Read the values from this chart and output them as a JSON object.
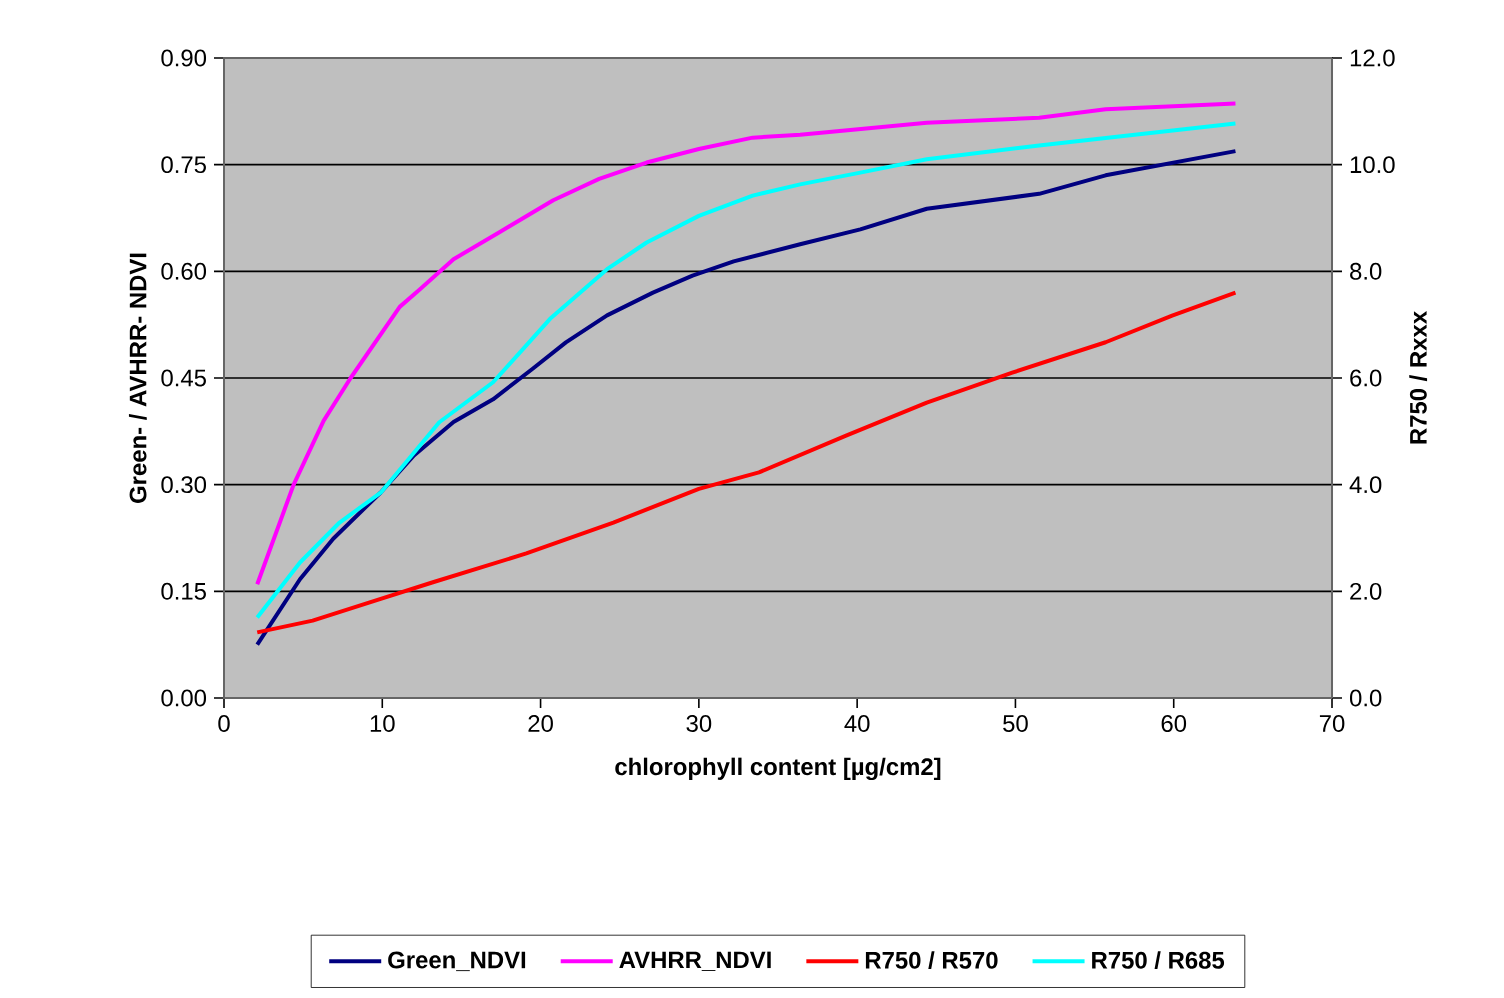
{
  "chart_data": {
    "type": "line",
    "xlabel": "chlorophyll content [µg/cm2]",
    "ylabel": "Green- / AVHRR- NDVI",
    "y2label": "R750 / Rxxx",
    "xlim": [
      0,
      70
    ],
    "xticks": [
      0,
      10,
      20,
      30,
      40,
      50,
      60,
      70
    ],
    "ylim": [
      0,
      0.9
    ],
    "yticks": [
      {
        "value": 0,
        "label": "0.00"
      },
      0.15,
      {
        "value": 0.3,
        "label": "0.30"
      },
      0.45,
      {
        "value": 0.6,
        "label": "0.60"
      },
      0.75,
      {
        "value": 0.9,
        "label": "0.90"
      }
    ],
    "y2lim": [
      0,
      12
    ],
    "y2ticks": [
      {
        "value": 0,
        "label": "0.0"
      },
      {
        "value": 2,
        "label": "2.0"
      },
      {
        "value": 4,
        "label": "4.0"
      },
      {
        "value": 6,
        "label": "6.0"
      },
      {
        "value": 8,
        "label": "8.0"
      },
      {
        "value": 10,
        "label": "10.0"
      },
      {
        "value": 12,
        "label": "12.0"
      }
    ],
    "grid": "y",
    "legend": "bottom",
    "marker": "none",
    "line_style": "solid",
    "series": [
      {
        "name": "Green_NDVI",
        "color": "#000080",
        "x": [
          2.1,
          4.8,
          6.9,
          9.9,
          12.0,
          14.5,
          17.0,
          19.5,
          21.6,
          24.2,
          27.1,
          29.6,
          32.2,
          36.4,
          40.2,
          44.4,
          51.5,
          55.7,
          63.9
        ],
        "values": [
          0.075,
          0.167,
          0.224,
          0.289,
          0.341,
          0.388,
          0.42,
          0.463,
          0.5,
          0.538,
          0.57,
          0.594,
          0.614,
          0.638,
          0.659,
          0.688,
          0.709,
          0.735,
          0.769
        ]
      },
      {
        "name": "AVHRR_NDVI",
        "color": "#ff00ff",
        "x": [
          2.1,
          4.4,
          6.3,
          8.0,
          11.1,
          12.4,
          14.5,
          17.4,
          20.8,
          23.7,
          26.7,
          30.0,
          33.4,
          36.4,
          44.4,
          51.5,
          55.7,
          63.9
        ],
        "values": [
          0.16,
          0.3,
          0.39,
          0.45,
          0.55,
          0.575,
          0.617,
          0.655,
          0.7,
          0.73,
          0.753,
          0.772,
          0.788,
          0.792,
          0.809,
          0.816,
          0.828,
          0.836
        ]
      },
      {
        "name": "R750 / R570",
        "color": "#ff0000",
        "axis": "y2",
        "x": [
          2.1,
          5.6,
          9.9,
          13.2,
          19.1,
          24.6,
          30.0,
          33.8,
          39.3,
          44.4,
          49.8,
          55.7,
          59.9,
          63.9
        ],
        "values": [
          1.23,
          1.45,
          1.86,
          2.17,
          2.71,
          3.29,
          3.92,
          4.23,
          4.92,
          5.54,
          6.1,
          6.67,
          7.17,
          7.6
        ]
      },
      {
        "name": "R750 / R685",
        "color": "#00ffff",
        "axis": "y2",
        "x": [
          2.1,
          4.8,
          7.3,
          9.9,
          13.6,
          17.0,
          19.1,
          20.6,
          24.2,
          26.7,
          30.0,
          33.4,
          36.4,
          40.2,
          44.4,
          51.5,
          55.7,
          63.9
        ],
        "values": [
          1.51,
          2.54,
          3.29,
          3.85,
          5.17,
          5.92,
          6.61,
          7.11,
          8.04,
          8.54,
          9.04,
          9.42,
          9.63,
          9.85,
          10.1,
          10.36,
          10.5,
          10.77
        ]
      }
    ]
  }
}
